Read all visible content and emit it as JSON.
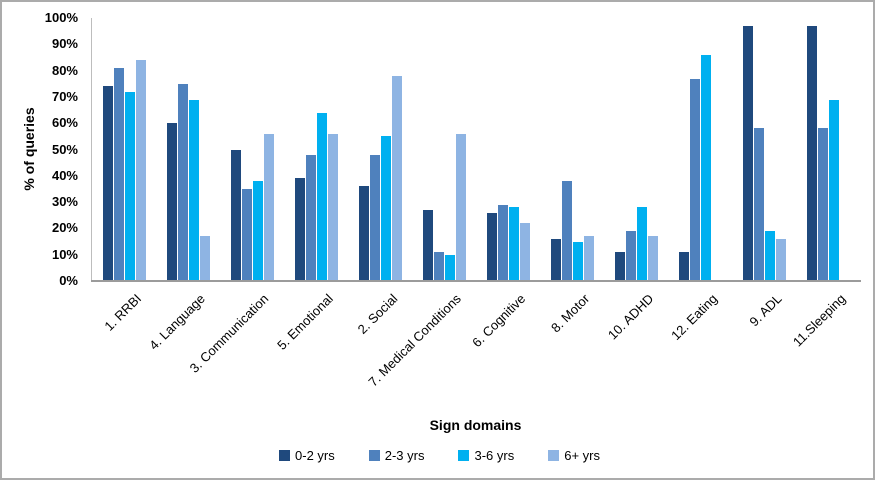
{
  "chart_data": {
    "type": "bar",
    "title": "",
    "ylabel": "% of queries",
    "xlabel": "Sign domains",
    "ylim": [
      0,
      100
    ],
    "ytick_labels": [
      "0%",
      "10%",
      "20%",
      "30%",
      "40%",
      "50%",
      "60%",
      "70%",
      "80%",
      "90%",
      "100%"
    ],
    "grid": false,
    "legend_position": "bottom",
    "categories": [
      "1. RRBI",
      "4. Language",
      "3. Communication",
      "5. Emotional",
      "2. Social",
      "7. Medical Conditions",
      "6. Cognitive",
      "8. Motor",
      "10. ADHD",
      "12. Eating",
      "9. ADL",
      "11.Sleeping"
    ],
    "series": [
      {
        "name": "0-2 yrs",
        "color": "#1F497D",
        "values": [
          74,
          60,
          50,
          39,
          36,
          27,
          26,
          16,
          11,
          11,
          97,
          97
        ]
      },
      {
        "name": "2-3 yrs",
        "color": "#4F81BD",
        "values": [
          81,
          75,
          35,
          48,
          48,
          11,
          29,
          38,
          19,
          77,
          58,
          58
        ]
      },
      {
        "name": "3-6 yrs",
        "color": "#00B0F0",
        "values": [
          72,
          69,
          38,
          64,
          55,
          10,
          28,
          15,
          28,
          86,
          19,
          69
        ]
      },
      {
        "name": "6+ yrs",
        "color": "#8EB4E3",
        "values": [
          84,
          17,
          56,
          56,
          78,
          56,
          22,
          17,
          17,
          0,
          16,
          0
        ]
      }
    ],
    "colors": {
      "axis_line": "#BDBDBD",
      "baseline": "#9B9B9B",
      "text": "#000000",
      "chart_border": "#ABABAB"
    }
  }
}
